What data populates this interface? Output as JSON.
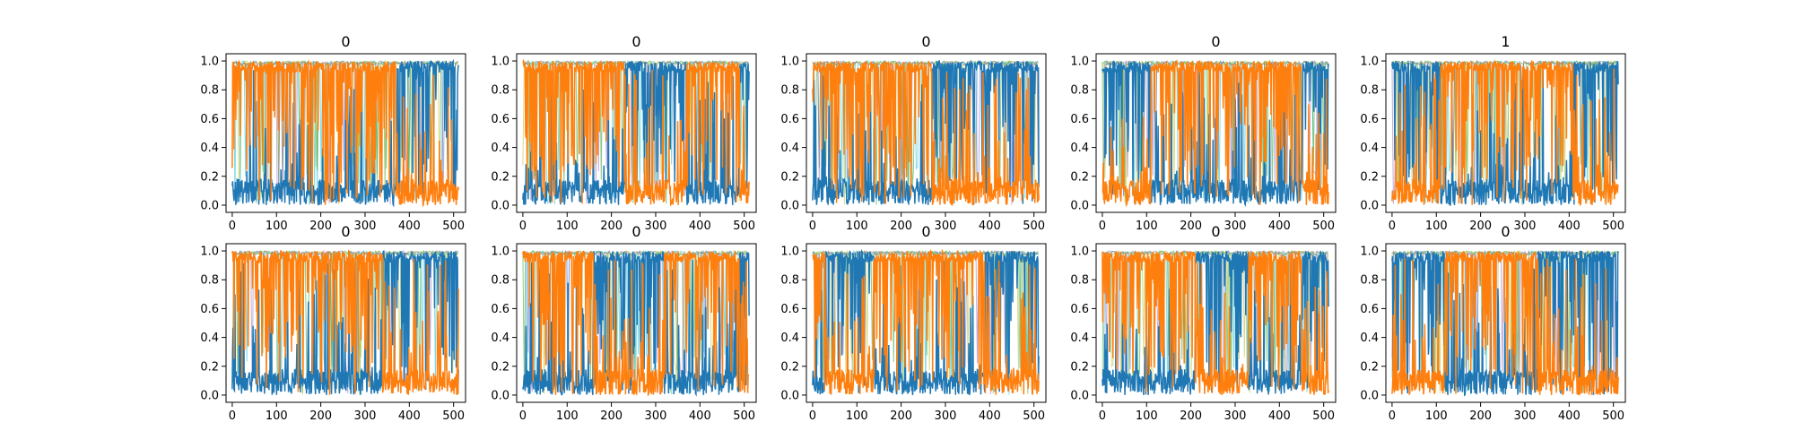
{
  "chart_data": {
    "type": "line",
    "layout": {
      "rows": 2,
      "cols": 5
    },
    "x_ticks": [
      0,
      100,
      200,
      300,
      400,
      500
    ],
    "y_ticks": [
      0.0,
      0.2,
      0.4,
      0.6,
      0.8,
      1.0
    ],
    "x_tick_labels": [
      "0",
      "100",
      "200",
      "300",
      "400",
      "500"
    ],
    "y_tick_labels": [
      "0.0",
      "0.2",
      "0.4",
      "0.6",
      "0.8",
      "1.0"
    ],
    "xlim": [
      -14,
      527
    ],
    "ylim": [
      -0.05,
      1.05
    ],
    "grid": false,
    "series_colors": [
      "#1f77b4",
      "#ff7f0e",
      "#17becf",
      "#2ca02c",
      "#bcbd22",
      "#9467bd"
    ],
    "n_points": 512,
    "panels": [
      {
        "title": "0",
        "segments": [
          [
            0,
            370,
            "orange"
          ],
          [
            370,
            512,
            "blue"
          ]
        ]
      },
      {
        "title": "0",
        "segments": [
          [
            0,
            230,
            "orange"
          ],
          [
            230,
            370,
            "blue"
          ],
          [
            370,
            490,
            "orange"
          ],
          [
            490,
            512,
            "blue"
          ]
        ]
      },
      {
        "title": "0",
        "segments": [
          [
            0,
            270,
            "orange"
          ],
          [
            270,
            512,
            "blue"
          ]
        ]
      },
      {
        "title": "0",
        "segments": [
          [
            0,
            20,
            "blue"
          ],
          [
            20,
            110,
            "blue"
          ],
          [
            110,
            450,
            "orange"
          ],
          [
            450,
            512,
            "blue"
          ]
        ]
      },
      {
        "title": "1",
        "segments": [
          [
            0,
            110,
            "blue"
          ],
          [
            110,
            410,
            "orange"
          ],
          [
            410,
            512,
            "blue"
          ]
        ]
      },
      {
        "title": "0",
        "segments": [
          [
            0,
            340,
            "orange"
          ],
          [
            340,
            512,
            "blue"
          ]
        ]
      },
      {
        "title": "0",
        "segments": [
          [
            0,
            160,
            "orange"
          ],
          [
            160,
            320,
            "blue"
          ],
          [
            320,
            490,
            "orange"
          ],
          [
            490,
            512,
            "blue"
          ]
        ]
      },
      {
        "title": "0",
        "segments": [
          [
            0,
            30,
            "orange"
          ],
          [
            30,
            140,
            "blue"
          ],
          [
            140,
            390,
            "orange"
          ],
          [
            390,
            512,
            "blue"
          ]
        ]
      },
      {
        "title": "0",
        "segments": [
          [
            0,
            210,
            "orange"
          ],
          [
            210,
            330,
            "blue"
          ],
          [
            330,
            450,
            "orange"
          ],
          [
            450,
            512,
            "blue"
          ]
        ]
      },
      {
        "title": "0",
        "segments": [
          [
            0,
            120,
            "blue"
          ],
          [
            120,
            330,
            "orange"
          ],
          [
            330,
            512,
            "blue"
          ]
        ]
      }
    ]
  }
}
